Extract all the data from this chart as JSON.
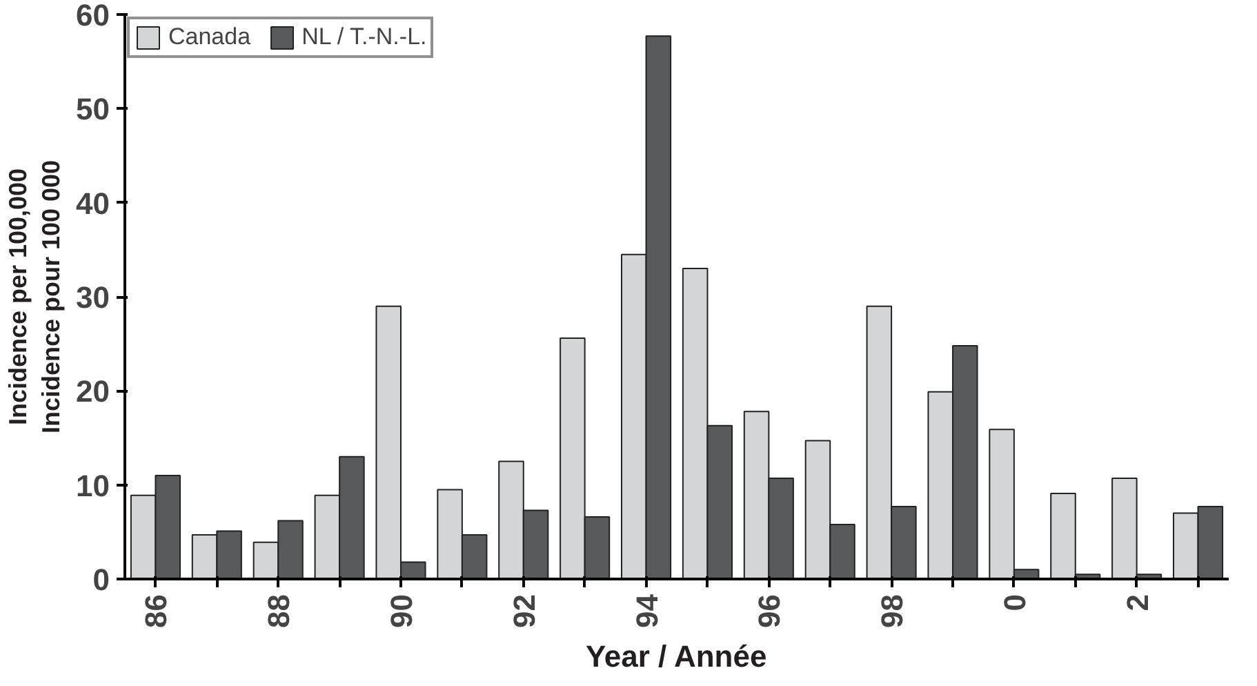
{
  "chart_data": {
    "type": "bar",
    "xlabel": "Year / Année",
    "ylabel": "Incidence per 100,000\nIncidence pour 100 000",
    "categories": [
      "86",
      null,
      "88",
      null,
      "90",
      null,
      "92",
      null,
      "94",
      null,
      "96",
      null,
      "98",
      null,
      "0",
      null,
      "2",
      null
    ],
    "series": [
      {
        "name": "Canada",
        "color": "#d4d5d7",
        "values": [
          8.9,
          4.7,
          3.9,
          8.9,
          29.0,
          9.5,
          12.5,
          25.6,
          34.5,
          33.0,
          17.8,
          14.7,
          29.0,
          19.9,
          15.9,
          9.1,
          10.7,
          7.0
        ]
      },
      {
        "name": "NL / T.-N.-L.",
        "color": "#58595b",
        "values": [
          11.0,
          5.1,
          6.2,
          13.0,
          1.8,
          4.7,
          7.3,
          6.6,
          57.7,
          16.3,
          10.7,
          5.8,
          7.7,
          24.8,
          1.0,
          0.5,
          0.5,
          7.7
        ]
      }
    ],
    "ylim": [
      0,
      60
    ],
    "yticks": [
      0,
      10,
      20,
      30,
      40,
      50,
      60
    ],
    "grid": false,
    "legend": "top left"
  }
}
